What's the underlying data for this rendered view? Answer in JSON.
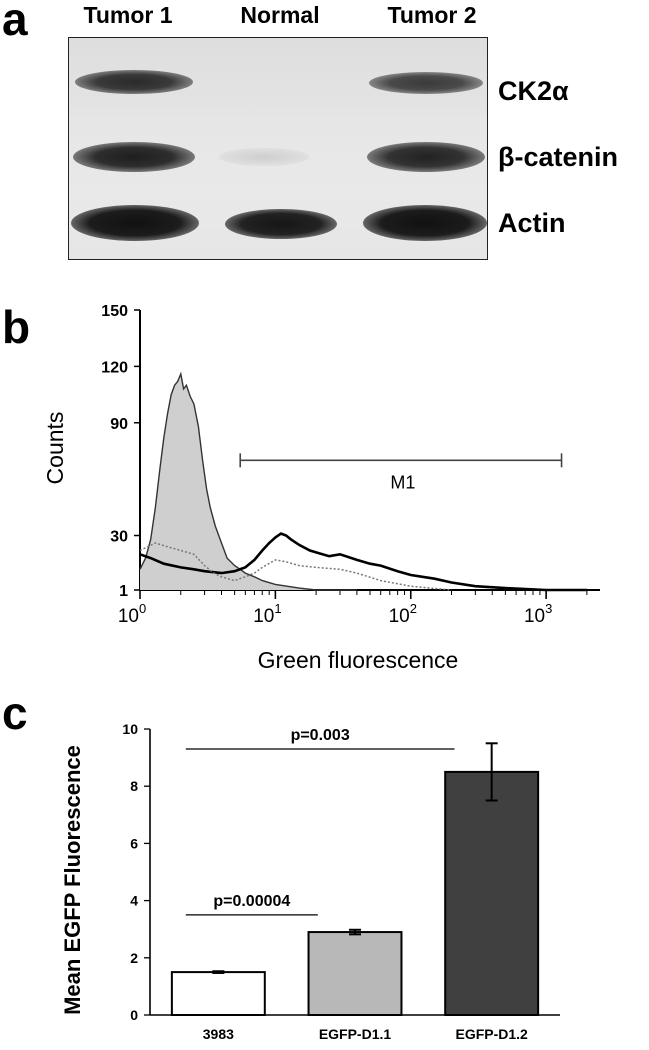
{
  "panels": {
    "a": {
      "letter": "a",
      "lanes": [
        "Tumor 1",
        "Normal",
        "Tumor 2"
      ],
      "bands": [
        "CK2α",
        "β-catenin",
        "Actin"
      ]
    },
    "b": {
      "letter": "b"
    },
    "c": {
      "letter": "c"
    }
  },
  "chart_data": [
    {
      "panel": "b",
      "type": "line",
      "xlabel": "Green fluorescence",
      "ylabel": "Counts",
      "xscale": "log",
      "xlim": [
        1,
        2500
      ],
      "x_ticks": [
        {
          "value": 1,
          "base": "10",
          "exp": "0"
        },
        {
          "value": 10,
          "base": "10",
          "exp": "1"
        },
        {
          "value": 100,
          "base": "10",
          "exp": "2"
        },
        {
          "value": 1000,
          "base": "10",
          "exp": "3"
        }
      ],
      "y_ticks": [
        1,
        30,
        90,
        120,
        150
      ],
      "ylim": [
        1,
        150
      ],
      "marker": {
        "label": "M1",
        "x_start": 5.5,
        "x_end": 1300,
        "y": 70
      },
      "series": [
        {
          "style": "filled-gray",
          "x": [
            1,
            1.1,
            1.2,
            1.3,
            1.4,
            1.5,
            1.6,
            1.7,
            1.8,
            1.9,
            2.0,
            2.1,
            2.2,
            2.35,
            2.5,
            2.7,
            2.9,
            3.1,
            3.3,
            3.6,
            4.0,
            4.4,
            5.0,
            5.5,
            6.0,
            7.0,
            8.0,
            10,
            15,
            20,
            40
          ],
          "y": [
            12,
            18,
            28,
            45,
            65,
            82,
            95,
            105,
            110,
            112,
            116,
            108,
            110,
            104,
            100,
            88,
            70,
            55,
            45,
            35,
            26,
            18,
            14,
            12,
            10,
            8,
            6,
            4,
            2,
            1,
            1
          ]
        },
        {
          "style": "black",
          "x": [
            1,
            1.2,
            1.5,
            2.0,
            2.5,
            3.0,
            4.0,
            5.0,
            6.0,
            7.0,
            8.0,
            9.0,
            10,
            11,
            12,
            13,
            15,
            18,
            20,
            25,
            30,
            40,
            50,
            60,
            80,
            100,
            150,
            200,
            300,
            500,
            1000,
            2000
          ],
          "y": [
            20,
            18,
            15,
            13,
            12,
            11,
            10,
            11,
            13,
            17,
            22,
            26,
            29,
            31,
            30,
            28,
            25,
            22,
            21,
            19,
            20,
            17,
            15,
            14,
            11,
            9,
            7,
            5,
            3,
            2,
            1,
            1
          ]
        },
        {
          "style": "dotted-gray",
          "x": [
            1,
            1.3,
            1.6,
            2.0,
            2.5,
            3.0,
            3.5,
            4.0,
            5.0,
            6.0,
            7.0,
            8.0,
            10,
            12,
            15,
            20,
            30,
            40,
            60,
            100,
            200
          ],
          "y": [
            22,
            26,
            24,
            22,
            20,
            14,
            10,
            8,
            6,
            8,
            10,
            13,
            17,
            16,
            14,
            13,
            12,
            10,
            6,
            3,
            1
          ]
        }
      ]
    },
    {
      "panel": "c",
      "type": "bar",
      "ylabel": "Mean EGFP Fluorescence",
      "categories": [
        "3983",
        "EGFP-D1.1",
        "EGFP-D1.2"
      ],
      "values": [
        1.5,
        2.9,
        8.5
      ],
      "errors": [
        0.03,
        0.08,
        1.0
      ],
      "colors": [
        "#ffffff",
        "#b8b8b8",
        "#404040"
      ],
      "ylim": [
        0,
        10
      ],
      "y_ticks": [
        0,
        2,
        4,
        6,
        8,
        10
      ],
      "comparisons": [
        {
          "label": "p=0.00004",
          "from": 0,
          "to": 1,
          "y": 3.5
        },
        {
          "label": "p=0.003",
          "from": 0,
          "to": 2,
          "y": 9.3
        }
      ]
    }
  ]
}
